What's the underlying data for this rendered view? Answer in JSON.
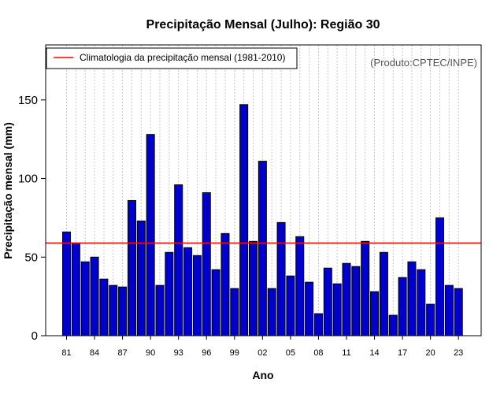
{
  "chart_data": {
    "type": "bar",
    "title": "Precipitação Mensal (Julho): Região 30",
    "xlabel": "Ano",
    "ylabel": "Precipitação mensal (mm)",
    "credit": "(Produto:CPTEC/INPE)",
    "ylim": [
      0,
      185
    ],
    "yticks": [
      0,
      50,
      100,
      150
    ],
    "years": [
      1981,
      1982,
      1983,
      1984,
      1985,
      1986,
      1987,
      1988,
      1989,
      1990,
      1991,
      1992,
      1993,
      1994,
      1995,
      1996,
      1997,
      1998,
      1999,
      2000,
      2001,
      2002,
      2003,
      2004,
      2005,
      2006,
      2007,
      2008,
      2009,
      2010,
      2011,
      2012,
      2013,
      2014,
      2015,
      2016,
      2017,
      2018,
      2019,
      2020,
      2021,
      2022,
      2023
    ],
    "values": [
      66,
      59,
      47,
      50,
      36,
      32,
      31,
      86,
      73,
      128,
      32,
      53,
      96,
      56,
      51,
      91,
      42,
      65,
      30,
      147,
      60,
      111,
      30,
      72,
      38,
      63,
      34,
      14,
      43,
      33,
      46,
      44,
      60,
      28,
      53,
      13,
      37,
      47,
      42,
      20,
      75,
      32,
      30
    ],
    "xtick_labels": [
      "81",
      "84",
      "87",
      "90",
      "93",
      "96",
      "99",
      "02",
      "05",
      "08",
      "11",
      "14",
      "17",
      "20",
      "23"
    ],
    "bar_color": "#0000cd",
    "climatology": {
      "value": 59,
      "color": "#ff0000",
      "label": "Climatologia da precipitação mensal (1981-2010)"
    }
  }
}
